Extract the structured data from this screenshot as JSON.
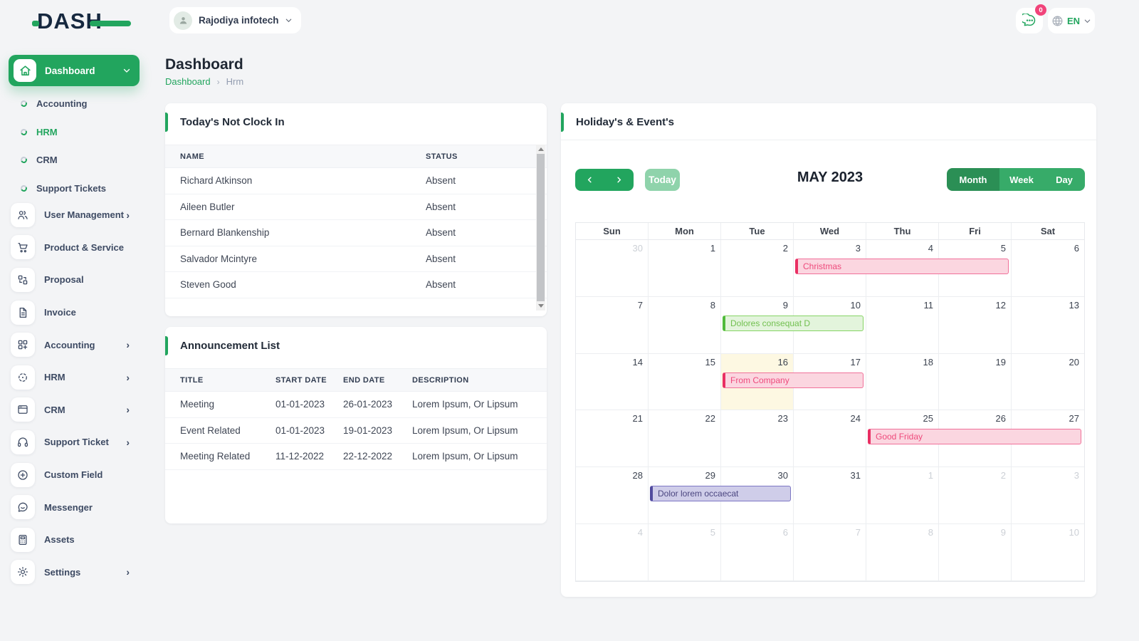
{
  "palette": {
    "primary": "#22a55e",
    "primary_dark": "#2b8f55",
    "primary_light": "#8fd3ab",
    "badge_pink": "#f1437a",
    "today_bg": "#fdf8e2",
    "event_colors": {
      "pink": {
        "bg": "#fbd6e0",
        "border": "#f0719a",
        "accent": "#e92f63",
        "text": "#ee4b7c"
      },
      "green": {
        "bg": "#e3f4dc",
        "border": "#86d465",
        "accent": "#50ba3c",
        "text": "#72c050"
      },
      "purple": {
        "bg": "#cfcde9",
        "border": "#7d77c4",
        "accent": "#514b9e",
        "text": "#4b4680"
      }
    }
  },
  "logo": {
    "text": "DASH"
  },
  "topbar": {
    "company": "Rajodiya infotech",
    "chat_badge": "0",
    "language": "EN"
  },
  "page": {
    "title": "Dashboard",
    "breadcrumb_root": "Dashboard",
    "breadcrumb_current": "Hrm"
  },
  "sidebar": {
    "active_item": {
      "label": "Dashboard"
    },
    "submenu": [
      {
        "label": "Accounting",
        "active": false
      },
      {
        "label": "HRM",
        "active": true
      },
      {
        "label": "CRM",
        "active": false
      },
      {
        "label": "Support Tickets",
        "active": false
      }
    ],
    "menu": [
      {
        "label": "User Management",
        "icon": "users",
        "chevron": true
      },
      {
        "label": "Product & Service",
        "icon": "cart",
        "chevron": false
      },
      {
        "label": "Proposal",
        "icon": "swap",
        "chevron": false
      },
      {
        "label": "Invoice",
        "icon": "document",
        "chevron": false
      },
      {
        "label": "Accounting",
        "icon": "grid-plus",
        "chevron": true
      },
      {
        "label": "HRM",
        "icon": "dashed-circle",
        "chevron": true
      },
      {
        "label": "CRM",
        "icon": "card",
        "chevron": true
      },
      {
        "label": "Support Ticket",
        "icon": "headset",
        "chevron": true
      },
      {
        "label": "Custom Field",
        "icon": "plus-circle",
        "chevron": false
      },
      {
        "label": "Messenger",
        "icon": "chat",
        "chevron": false
      },
      {
        "label": "Assets",
        "icon": "calculator",
        "chevron": false
      },
      {
        "label": "Settings",
        "icon": "gear",
        "chevron": true
      }
    ]
  },
  "clock_in_card": {
    "title": "Today's Not Clock In",
    "columns": [
      "NAME",
      "STATUS"
    ],
    "rows": [
      [
        "Richard Atkinson",
        "Absent"
      ],
      [
        "Aileen Butler",
        "Absent"
      ],
      [
        "Bernard Blankenship",
        "Absent"
      ],
      [
        "Salvador Mcintyre",
        "Absent"
      ],
      [
        "Steven Good",
        "Absent"
      ]
    ]
  },
  "announcement_card": {
    "title": "Announcement List",
    "columns": [
      "TITLE",
      "START DATE",
      "END DATE",
      "DESCRIPTION"
    ],
    "rows": [
      [
        "Meeting",
        "01-01-2023",
        "26-01-2023",
        "Lorem Ipsum, Or Lipsum"
      ],
      [
        "Event Related",
        "01-01-2023",
        "19-01-2023",
        "Lorem Ipsum, Or Lipsum"
      ],
      [
        "Meeting Related",
        "11-12-2022",
        "22-12-2022",
        "Lorem Ipsum, Or Lipsum"
      ]
    ]
  },
  "calendar_card": {
    "title": "Holiday's & Event's",
    "toolbar": {
      "today_label": "Today",
      "month_label": "MAY 2023",
      "views": [
        "Month",
        "Week",
        "Day"
      ],
      "active_view": "Month"
    },
    "day_headers": [
      "Sun",
      "Mon",
      "Tue",
      "Wed",
      "Thu",
      "Fri",
      "Sat"
    ],
    "weeks": [
      [
        {
          "n": 30,
          "muted": true
        },
        {
          "n": 1
        },
        {
          "n": 2
        },
        {
          "n": 3
        },
        {
          "n": 4
        },
        {
          "n": 5
        },
        {
          "n": 6
        }
      ],
      [
        {
          "n": 7
        },
        {
          "n": 8
        },
        {
          "n": 9
        },
        {
          "n": 10
        },
        {
          "n": 11
        },
        {
          "n": 12
        },
        {
          "n": 13
        }
      ],
      [
        {
          "n": 14
        },
        {
          "n": 15
        },
        {
          "n": 16,
          "today": true
        },
        {
          "n": 17
        },
        {
          "n": 18
        },
        {
          "n": 19
        },
        {
          "n": 20
        }
      ],
      [
        {
          "n": 21
        },
        {
          "n": 22
        },
        {
          "n": 23
        },
        {
          "n": 24
        },
        {
          "n": 25
        },
        {
          "n": 26
        },
        {
          "n": 27
        }
      ],
      [
        {
          "n": 28
        },
        {
          "n": 29
        },
        {
          "n": 30
        },
        {
          "n": 31
        },
        {
          "n": 1,
          "muted": true
        },
        {
          "n": 2,
          "muted": true
        },
        {
          "n": 3,
          "muted": true
        }
      ],
      [
        {
          "n": 4,
          "muted": true
        },
        {
          "n": 5,
          "muted": true
        },
        {
          "n": 6,
          "muted": true
        },
        {
          "n": 7,
          "muted": true
        },
        {
          "n": 8,
          "muted": true
        },
        {
          "n": 9,
          "muted": true
        },
        {
          "n": 10,
          "muted": true
        }
      ]
    ],
    "events": [
      {
        "label": "Christmas",
        "week": 0,
        "col": 3,
        "span": 3,
        "type": "pink"
      },
      {
        "label": "Dolores consequat D",
        "week": 1,
        "col": 2,
        "span": 2,
        "type": "green"
      },
      {
        "label": "From Company",
        "week": 2,
        "col": 2,
        "span": 2,
        "type": "pink"
      },
      {
        "label": "Good Friday",
        "week": 3,
        "col": 4,
        "span": 3,
        "type": "pink"
      },
      {
        "label": "Dolor lorem occaecat",
        "week": 4,
        "col": 1,
        "span": 2,
        "type": "purple"
      }
    ]
  }
}
